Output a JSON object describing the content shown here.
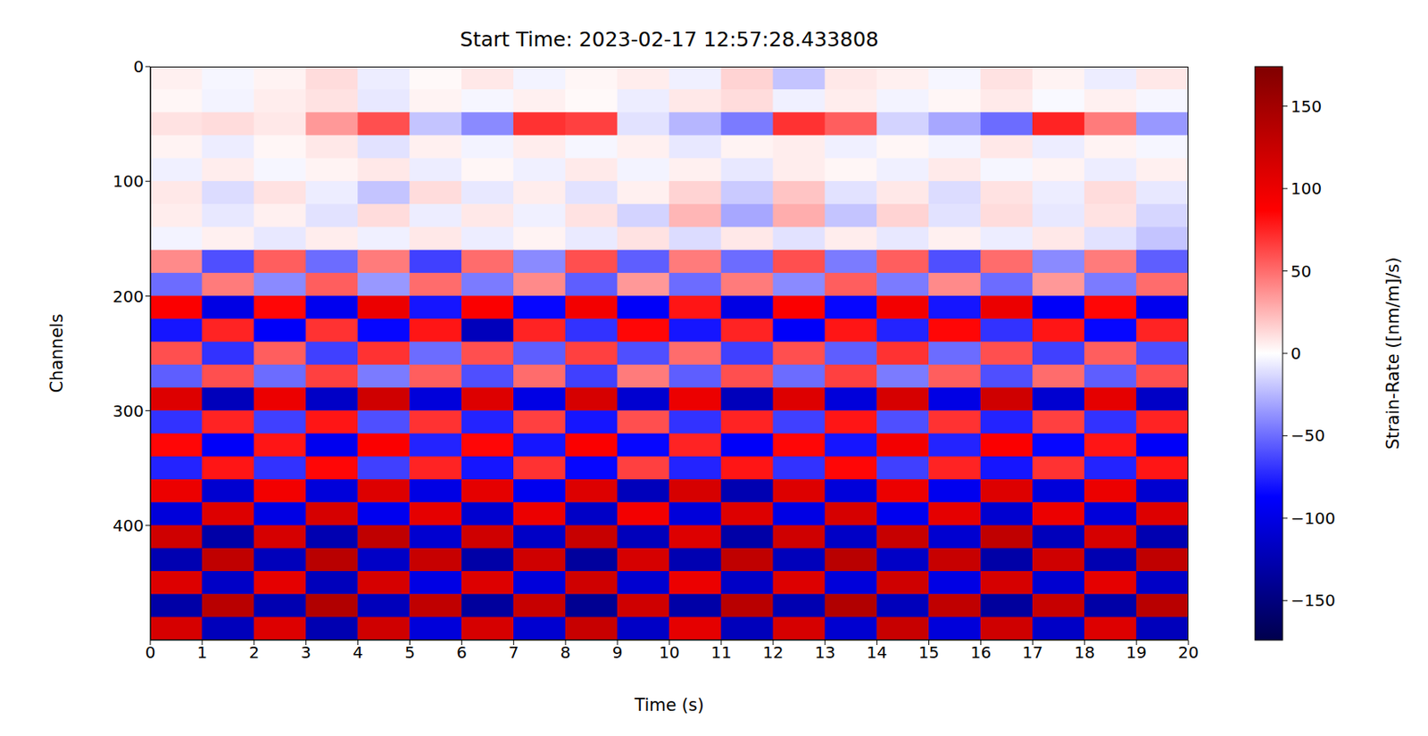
{
  "chart_data": {
    "type": "heatmap",
    "title": "Start Time: 2023-02-17 12:57:28.433808",
    "x_label": "Time (s)",
    "y_label": "Channels",
    "x": [
      0.5,
      1.5,
      2.5,
      3.5,
      4.5,
      5.5,
      6.5,
      7.5,
      8.5,
      9.5,
      10.5,
      11.5,
      12.5,
      13.5,
      14.5,
      15.5,
      16.5,
      17.5,
      18.5,
      19.5
    ],
    "y": [
      10,
      30,
      50,
      70,
      90,
      110,
      130,
      150,
      170,
      190,
      210,
      230,
      250,
      270,
      290,
      310,
      330,
      350,
      370,
      390,
      410,
      430,
      450,
      470,
      490
    ],
    "values": [
      [
        5,
        -3,
        4,
        12,
        -6,
        2,
        8,
        -4,
        3,
        6,
        -5,
        15,
        -20,
        8,
        5,
        -3,
        10,
        4,
        -6,
        8
      ],
      [
        3,
        -4,
        6,
        10,
        -8,
        4,
        -3,
        5,
        2,
        -6,
        8,
        12,
        -5,
        6,
        -4,
        3,
        7,
        -2,
        5,
        -3
      ],
      [
        10,
        12,
        8,
        35,
        60,
        -20,
        -40,
        70,
        65,
        -10,
        -25,
        -45,
        70,
        55,
        -15,
        -30,
        -50,
        75,
        45,
        -35
      ],
      [
        4,
        -6,
        3,
        8,
        -10,
        5,
        -4,
        6,
        -3,
        5,
        -8,
        4,
        6,
        -5,
        3,
        -4,
        8,
        -6,
        4,
        -3
      ],
      [
        -5,
        6,
        -3,
        4,
        8,
        -6,
        3,
        -5,
        7,
        -4,
        5,
        -8,
        6,
        3,
        -5,
        7,
        -3,
        4,
        -6,
        5
      ],
      [
        8,
        -12,
        10,
        -6,
        -20,
        12,
        -8,
        6,
        -10,
        5,
        15,
        -18,
        20,
        -10,
        8,
        -12,
        10,
        -6,
        12,
        -8
      ],
      [
        6,
        -8,
        5,
        -10,
        12,
        -6,
        8,
        -5,
        10,
        -15,
        25,
        -30,
        28,
        -20,
        15,
        -10,
        12,
        -8,
        10,
        -14
      ],
      [
        -4,
        5,
        -8,
        6,
        -5,
        8,
        -6,
        4,
        -7,
        10,
        -12,
        8,
        -10,
        6,
        -8,
        5,
        -6,
        8,
        -10,
        -20
      ],
      [
        40,
        -60,
        55,
        -50,
        45,
        -65,
        50,
        -40,
        60,
        -55,
        45,
        -50,
        60,
        -45,
        55,
        -60,
        50,
        -40,
        45,
        -55
      ],
      [
        -50,
        45,
        -40,
        55,
        -35,
        50,
        -45,
        40,
        -55,
        35,
        -50,
        45,
        -40,
        55,
        -45,
        40,
        -50,
        35,
        -45,
        50
      ],
      [
        90,
        -100,
        85,
        -95,
        100,
        -80,
        90,
        -85,
        95,
        -90,
        80,
        -100,
        90,
        -85,
        95,
        -80,
        100,
        -90,
        85,
        -95
      ],
      [
        -80,
        75,
        -90,
        70,
        -85,
        80,
        -120,
        75,
        -70,
        85,
        -80,
        75,
        -90,
        80,
        -75,
        85,
        -70,
        80,
        -85,
        75
      ],
      [
        60,
        -70,
        55,
        -65,
        70,
        -50,
        60,
        -55,
        65,
        -60,
        50,
        -65,
        60,
        -55,
        70,
        -50,
        60,
        -65,
        55,
        -60
      ],
      [
        -55,
        60,
        -50,
        65,
        -45,
        55,
        -60,
        50,
        -65,
        45,
        -55,
        60,
        -50,
        65,
        -45,
        55,
        -60,
        50,
        -55,
        60
      ],
      [
        110,
        -120,
        100,
        -115,
        120,
        -105,
        110,
        -100,
        115,
        -110,
        100,
        -120,
        110,
        -105,
        115,
        -100,
        120,
        -110,
        105,
        -115
      ],
      [
        -70,
        75,
        -65,
        80,
        -60,
        70,
        -75,
        65,
        -80,
        60,
        -70,
        75,
        -65,
        80,
        -60,
        70,
        -75,
        65,
        -70,
        75
      ],
      [
        85,
        -90,
        80,
        -95,
        90,
        -75,
        85,
        -80,
        90,
        -85,
        75,
        -90,
        85,
        -80,
        95,
        -75,
        90,
        -85,
        80,
        -90
      ],
      [
        -75,
        80,
        -70,
        85,
        -65,
        75,
        -80,
        70,
        -85,
        65,
        -75,
        80,
        -70,
        85,
        -65,
        75,
        -80,
        70,
        -75,
        80
      ],
      [
        100,
        -110,
        95,
        -105,
        110,
        -100,
        105,
        -95,
        110,
        -120,
        115,
        -125,
        110,
        -105,
        100,
        -95,
        110,
        -105,
        100,
        -110
      ],
      [
        -105,
        110,
        -100,
        115,
        -95,
        105,
        -110,
        100,
        -115,
        95,
        -105,
        110,
        -100,
        115,
        -95,
        105,
        -110,
        100,
        -105,
        110
      ],
      [
        120,
        -130,
        115,
        -125,
        130,
        -110,
        120,
        -115,
        125,
        -120,
        110,
        -130,
        120,
        -115,
        125,
        -110,
        130,
        -120,
        115,
        -125
      ],
      [
        -125,
        130,
        -120,
        135,
        -115,
        125,
        -130,
        120,
        -135,
        115,
        -125,
        130,
        -120,
        135,
        -115,
        125,
        -130,
        120,
        -125,
        130
      ],
      [
        110,
        -115,
        105,
        -120,
        115,
        -100,
        110,
        -105,
        120,
        -110,
        100,
        -115,
        110,
        -105,
        120,
        -100,
        115,
        -110,
        105,
        -115
      ],
      [
        -130,
        135,
        -125,
        140,
        -120,
        130,
        -135,
        125,
        -140,
        120,
        -130,
        135,
        -125,
        140,
        -120,
        130,
        -135,
        125,
        -130,
        135
      ],
      [
        115,
        -120,
        110,
        -125,
        120,
        -105,
        115,
        -110,
        125,
        -115,
        105,
        -120,
        115,
        -110,
        125,
        -105,
        120,
        -115,
        110,
        -120
      ]
    ],
    "xlim": [
      0,
      20
    ],
    "xticks": [
      0,
      1,
      2,
      3,
      4,
      5,
      6,
      7,
      8,
      9,
      10,
      11,
      12,
      13,
      14,
      15,
      16,
      17,
      18,
      19,
      20
    ],
    "ylim": [
      0,
      500
    ],
    "yticks": [
      0,
      100,
      200,
      300,
      400
    ],
    "colorbar": {
      "label": "Strain-Rate ([nm/m]/s)",
      "range": [
        -174,
        174
      ],
      "ticks": [
        -150,
        -100,
        -50,
        0,
        50,
        100,
        150
      ]
    }
  }
}
